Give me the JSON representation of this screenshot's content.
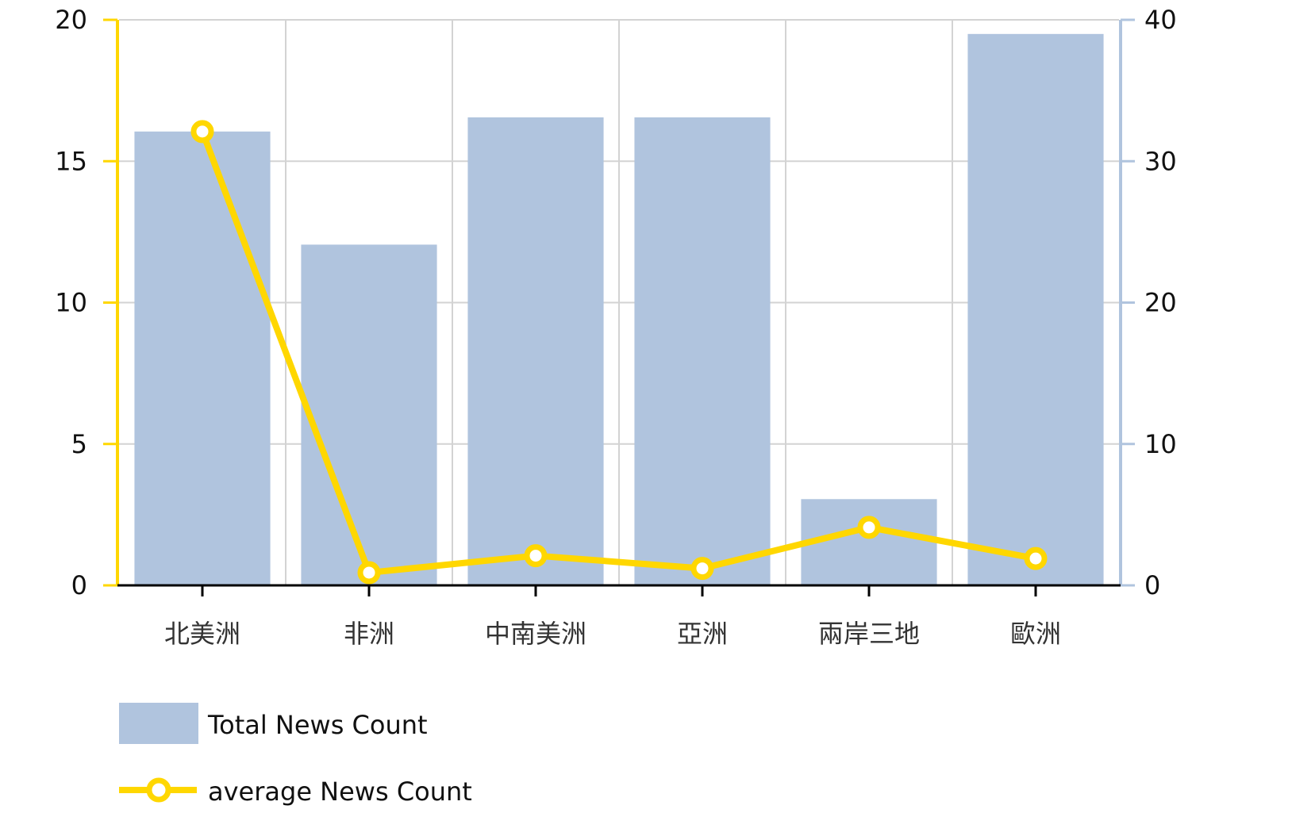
{
  "chart_data": {
    "type": "bar",
    "categories": [
      "北美洲",
      "非洲",
      "中南美洲",
      "亞洲",
      "兩岸三地",
      "歐洲"
    ],
    "series": [
      {
        "name": "Total News Count",
        "type": "bar",
        "axis": "right",
        "values": [
          32.1,
          24.1,
          33.1,
          33.1,
          6.1,
          39.0
        ]
      },
      {
        "name": "average News Count",
        "type": "line",
        "axis": "left",
        "values": [
          16.05,
          0.45,
          1.05,
          0.6,
          2.05,
          0.95
        ]
      }
    ],
    "left_axis": {
      "ylim": [
        0,
        20
      ],
      "ticks": [
        "0",
        "5",
        "10",
        "15",
        "20"
      ]
    },
    "right_axis": {
      "ylim": [
        0,
        40
      ],
      "ticks": [
        "0",
        "10",
        "20",
        "30",
        "40"
      ]
    },
    "grid": true,
    "legend_position": "bottom-left",
    "colors": {
      "bar": "#b0c4de",
      "line": "#ffd700",
      "grid": "#d3d3d3",
      "axis": "#000000"
    }
  }
}
